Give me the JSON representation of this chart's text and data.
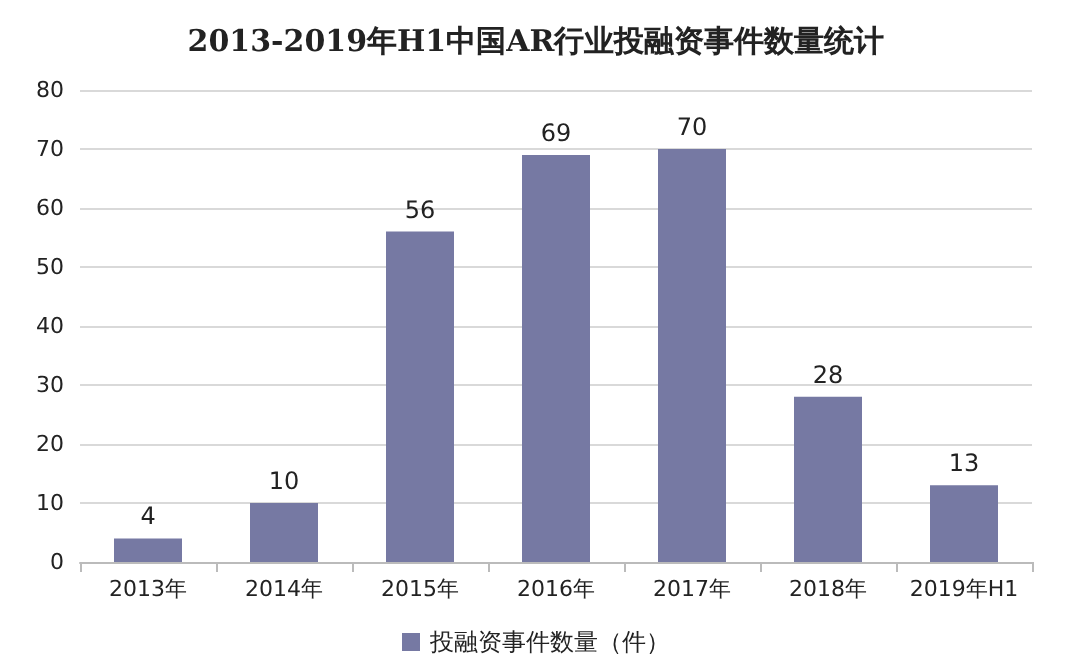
{
  "chart_data": {
    "type": "bar",
    "title": "2013-2019年H1中国AR行业投融资事件数量统计",
    "categories": [
      "2013年",
      "2014年",
      "2015年",
      "2016年",
      "2017年",
      "2018年",
      "2019年H1"
    ],
    "series": [
      {
        "name": "投融资事件数量（件）",
        "color": "#7679a3",
        "values": [
          4,
          10,
          56,
          69,
          70,
          28,
          13
        ]
      }
    ],
    "ylim": [
      0,
      80
    ],
    "yticks": [
      0,
      10,
      20,
      30,
      40,
      50,
      60,
      70,
      80
    ],
    "grid": "y",
    "legend": "bottom",
    "data_labels": true
  }
}
